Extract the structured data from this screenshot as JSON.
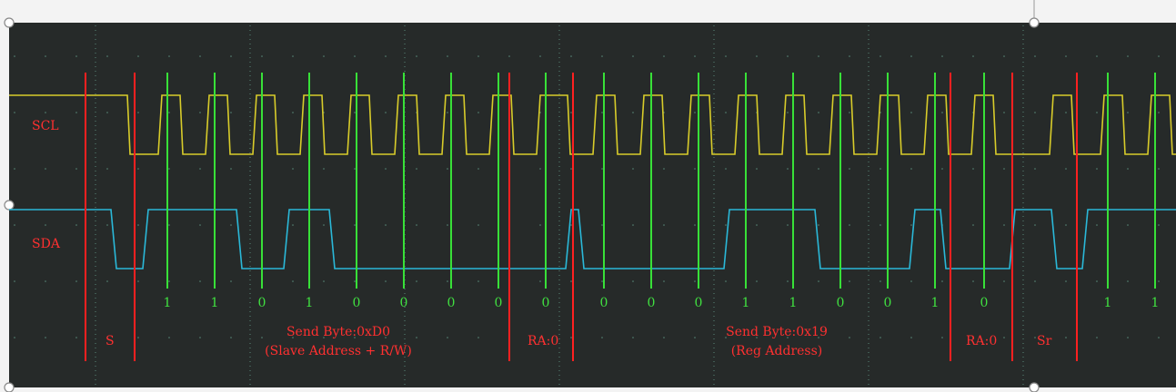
{
  "channels": {
    "scl_label": "SCL",
    "sda_label": "SDA"
  },
  "colors": {
    "screen_bg": "#262a29",
    "scl_trace": "#d8cc2a",
    "sda_trace": "#2ab8d8",
    "clock_marker": "#38e038",
    "boundary_marker": "#ff2020",
    "label_red": "#ff3030",
    "bit_green": "#40e040",
    "grid_dot": "#5a8a7a"
  },
  "bits": [
    "1",
    "1",
    "0",
    "1",
    "0",
    "0",
    "0",
    "0",
    "0",
    "0",
    "0",
    "0",
    "1",
    "1",
    "0",
    "0",
    "1",
    "0",
    "1",
    "1"
  ],
  "annotations": {
    "start": "S",
    "send1_line1": "Send Byte:0xD0",
    "send1_line2": "(Slave Address + R/W)",
    "ack1": "RA:0",
    "send2_line1": "Send Byte:0x19",
    "send2_line2": "(Reg Address)",
    "ack2": "RA:0",
    "repeated_start": "Sr"
  }
}
